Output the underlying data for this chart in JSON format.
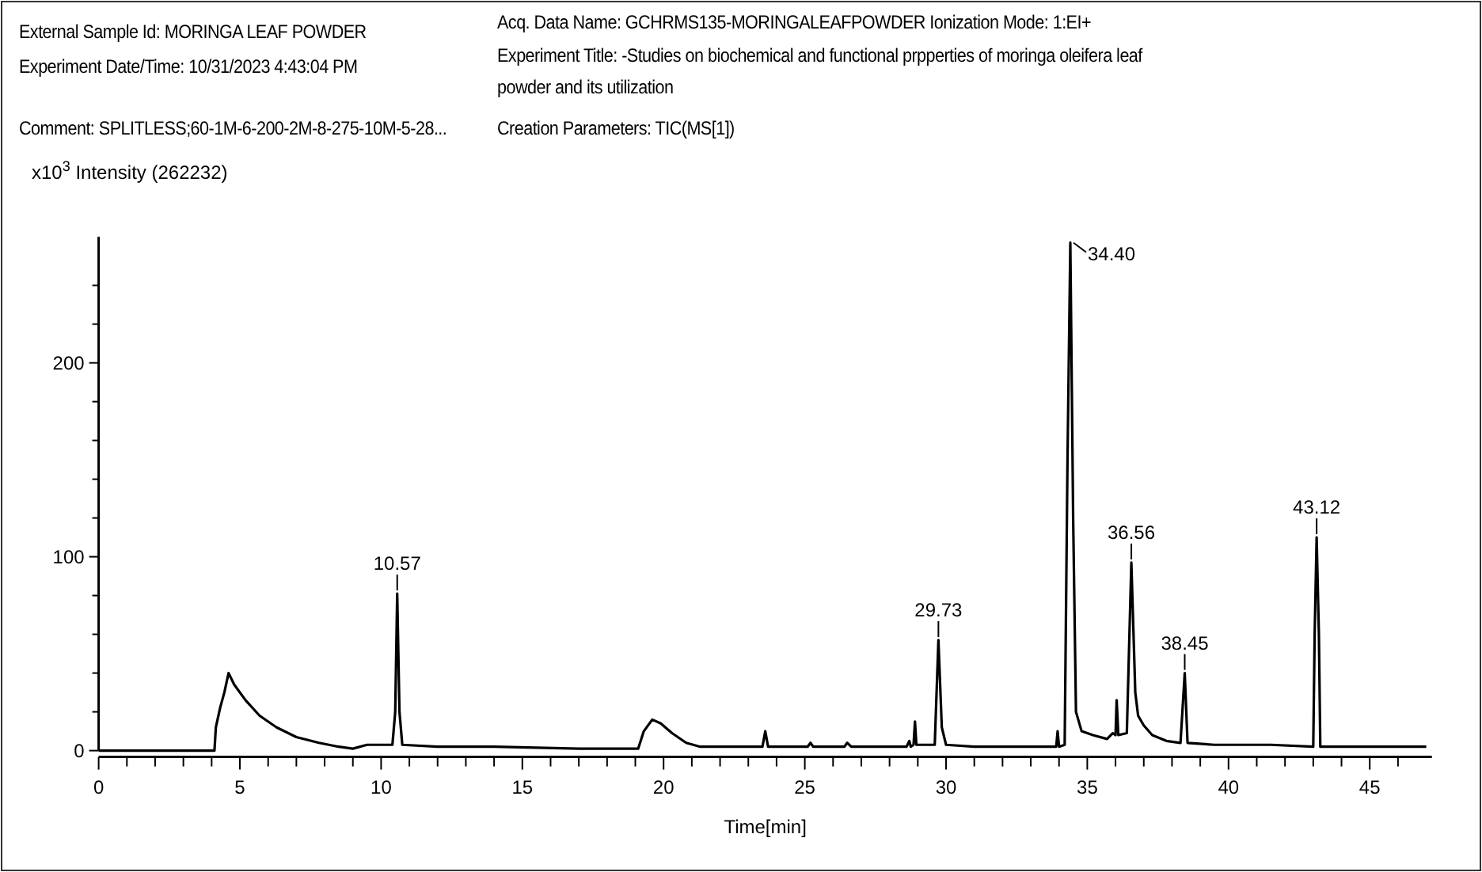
{
  "chart_data": {
    "type": "line",
    "xlabel": "Time[min]",
    "ylabel": "x10$^{3}$ Intensity (262232)",
    "annotations": [
      "External Sample Id: MORINGA LEAF POWDER",
      "Experiment Date/Time: 10/31/2023 4:43:04 PM",
      "Acq. Data Name: GCHRMS135-MORINGALEAFPOWDER Ionization Mode: 1:EI+",
      "Experiment Title: -Studies on biochemical and functional prpperties of moringa oleifera leaf powder and its utilization",
      "Comment: SPLITLESS;60-1M-6-200-2M-8-275-10M-5-28...",
      "Creation Parameters: TIC(MS[1])",
      {
        "text": "10.57",
        "x": 10.57,
        "y": 81
      },
      {
        "text": "29.73",
        "x": 29.73,
        "y": 57
      },
      {
        "text": "34.40",
        "x": 34.4,
        "y": 262
      },
      {
        "text": "36.56",
        "x": 36.56,
        "y": 97
      },
      {
        "text": "38.45",
        "x": 38.45,
        "y": 40
      },
      {
        "text": "43.12",
        "x": 43.12,
        "y": 110
      }
    ],
    "xlim": [
      0,
      47.2
    ],
    "ylim": [
      0,
      265
    ],
    "xticks": [
      0,
      {
        "value": 1,
        "label": null
      },
      {
        "value": 2,
        "label": null
      },
      {
        "value": 3,
        "label": null
      },
      {
        "value": 4,
        "label": null
      },
      5,
      {
        "value": 6,
        "label": null
      },
      {
        "value": 7,
        "label": null
      },
      {
        "value": 8,
        "label": null
      },
      {
        "value": 9,
        "label": null
      },
      10,
      {
        "value": 11,
        "label": null
      },
      {
        "value": 12,
        "label": null
      },
      {
        "value": 13,
        "label": null
      },
      {
        "value": 14,
        "label": null
      },
      15,
      {
        "value": 16,
        "label": null
      },
      {
        "value": 17,
        "label": null
      },
      {
        "value": 18,
        "label": null
      },
      {
        "value": 19,
        "label": null
      },
      20,
      {
        "value": 21,
        "label": null
      },
      {
        "value": 22,
        "label": null
      },
      {
        "value": 23,
        "label": null
      },
      {
        "value": 24,
        "label": null
      },
      25,
      {
        "value": 26,
        "label": null
      },
      {
        "value": 27,
        "label": null
      },
      {
        "value": 28,
        "label": null
      },
      {
        "value": 29,
        "label": null
      },
      30,
      {
        "value": 31,
        "label": null
      },
      {
        "value": 32,
        "label": null
      },
      {
        "value": 33,
        "label": null
      },
      {
        "value": 34,
        "label": null
      },
      35,
      {
        "value": 36,
        "label": null
      },
      {
        "value": 37,
        "label": null
      },
      {
        "value": 38,
        "label": null
      },
      {
        "value": 39,
        "label": null
      },
      40,
      {
        "value": 41,
        "label": null
      },
      {
        "value": 42,
        "label": null
      },
      {
        "value": 43,
        "label": null
      },
      {
        "value": 44,
        "label": null
      },
      45,
      {
        "value": 46,
        "label": null
      }
    ],
    "yticks": [
      0,
      {
        "value": 20,
        "label": null
      },
      {
        "value": 40,
        "label": null
      },
      {
        "value": 60,
        "label": null
      },
      {
        "value": 80,
        "label": null
      },
      100,
      {
        "value": 120,
        "label": null
      },
      {
        "value": 140,
        "label": null
      },
      {
        "value": 160,
        "label": null
      },
      {
        "value": 180,
        "label": null
      },
      200,
      {
        "value": 220,
        "label": null
      },
      {
        "value": 240,
        "label": null
      }
    ],
    "grid": false,
    "marker": "none",
    "line_style": "solid",
    "series": [
      {
        "color": "#000000",
        "x": [
          0,
          4.1,
          4.15,
          4.3,
          4.45,
          4.6,
          4.8,
          5.2,
          5.7,
          6.3,
          7,
          7.8,
          8.5,
          9,
          9.5,
          10.4,
          10.5,
          10.57,
          10.65,
          10.75,
          12,
          14,
          17,
          19.1,
          19.3,
          19.6,
          19.9,
          20.3,
          20.8,
          21.3,
          23.5,
          23.6,
          23.7,
          24.3,
          25.1,
          25.2,
          25.3,
          26.4,
          26.5,
          26.65,
          28.6,
          28.7,
          28.75,
          28.85,
          28.9,
          28.95,
          29.6,
          29.73,
          29.85,
          30,
          31,
          33.9,
          33.95,
          34,
          34.2,
          34.3,
          34.4,
          34.5,
          34.6,
          34.8,
          35.2,
          35.7,
          35.9,
          36,
          36.04,
          36.1,
          36.4,
          36.56,
          36.7,
          36.8,
          37,
          37.3,
          37.8,
          38.3,
          38.45,
          38.55,
          39.5,
          41.5,
          43,
          43.05,
          43.12,
          43.2,
          43.25,
          45,
          47
        ],
        "values": [
          0,
          0,
          12,
          22,
          30,
          40,
          34,
          26,
          18,
          12,
          7,
          4,
          2,
          1,
          3,
          3,
          20,
          81,
          20,
          3,
          2,
          2,
          1,
          1,
          10,
          16,
          14,
          9,
          4,
          2,
          2,
          10,
          2,
          2,
          2,
          4,
          2,
          2,
          4,
          2,
          2,
          5,
          2,
          3,
          15,
          3,
          3,
          57,
          12,
          3,
          2,
          2,
          10,
          2,
          3,
          150,
          262,
          120,
          20,
          10,
          8,
          6,
          9,
          8,
          26,
          8,
          9,
          97,
          30,
          18,
          13,
          8,
          5,
          4,
          40,
          4,
          3,
          3,
          2,
          60,
          110,
          60,
          2,
          2,
          2
        ]
      }
    ]
  }
}
